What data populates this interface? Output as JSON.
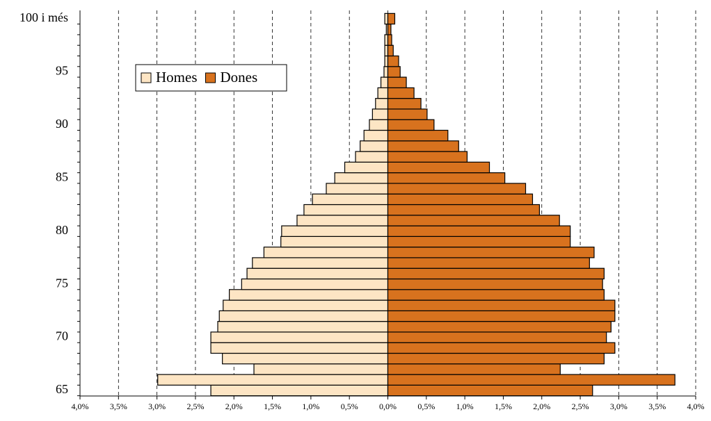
{
  "chart_data": {
    "type": "pyramid",
    "categories": [
      "65",
      null,
      null,
      null,
      null,
      "70",
      null,
      null,
      null,
      null,
      "75",
      null,
      null,
      null,
      null,
      "80",
      null,
      null,
      null,
      null,
      "85",
      null,
      null,
      null,
      null,
      "90",
      null,
      null,
      null,
      null,
      "95",
      null,
      null,
      null,
      null,
      "100 i més"
    ],
    "series": [
      {
        "name": "Homes",
        "color": "#fde5c4",
        "values": [
          -2.3,
          -2.99,
          -1.74,
          -2.15,
          -2.3,
          -2.3,
          -2.21,
          -2.19,
          -2.14,
          -2.06,
          -1.9,
          -1.83,
          -1.76,
          -1.61,
          -1.39,
          -1.38,
          -1.18,
          -1.09,
          -0.98,
          -0.8,
          -0.69,
          -0.56,
          -0.42,
          -0.36,
          -0.31,
          -0.24,
          -0.2,
          -0.16,
          -0.13,
          -0.09,
          -0.05,
          -0.04,
          -0.04,
          -0.04,
          -0.02,
          -0.04
        ]
      },
      {
        "name": "Dones",
        "color": "#d8721e",
        "values": [
          2.66,
          3.73,
          2.24,
          2.81,
          2.95,
          2.84,
          2.9,
          2.95,
          2.95,
          2.81,
          2.79,
          2.81,
          2.62,
          2.68,
          2.37,
          2.37,
          2.23,
          1.97,
          1.88,
          1.79,
          1.52,
          1.32,
          1.03,
          0.92,
          0.78,
          0.6,
          0.51,
          0.43,
          0.34,
          0.24,
          0.16,
          0.14,
          0.07,
          0.05,
          0.04,
          0.09
        ]
      }
    ],
    "xlim": [
      -4,
      4
    ],
    "xticks": [
      {
        "value": -4,
        "label": "4,0%"
      },
      {
        "value": -3.5,
        "label": "3,5%"
      },
      {
        "value": -3,
        "label": "3,0%"
      },
      {
        "value": -2.5,
        "label": "2,5%"
      },
      {
        "value": -2,
        "label": "2,0%"
      },
      {
        "value": -1.5,
        "label": "1,5%"
      },
      {
        "value": -1,
        "label": "1,0%"
      },
      {
        "value": -0.5,
        "label": "0,5%"
      },
      {
        "value": 0,
        "label": "0,0%"
      },
      {
        "value": 0.5,
        "label": "0,5%"
      },
      {
        "value": 1,
        "label": "1,0%"
      },
      {
        "value": 1.5,
        "label": "1,5%"
      },
      {
        "value": 2,
        "label": "2,0%"
      },
      {
        "value": 2.5,
        "label": "2,5%"
      },
      {
        "value": 3,
        "label": "3,0%"
      },
      {
        "value": 3.5,
        "label": "3,5%"
      },
      {
        "value": 4,
        "label": "4,0%"
      }
    ],
    "grid": true
  }
}
